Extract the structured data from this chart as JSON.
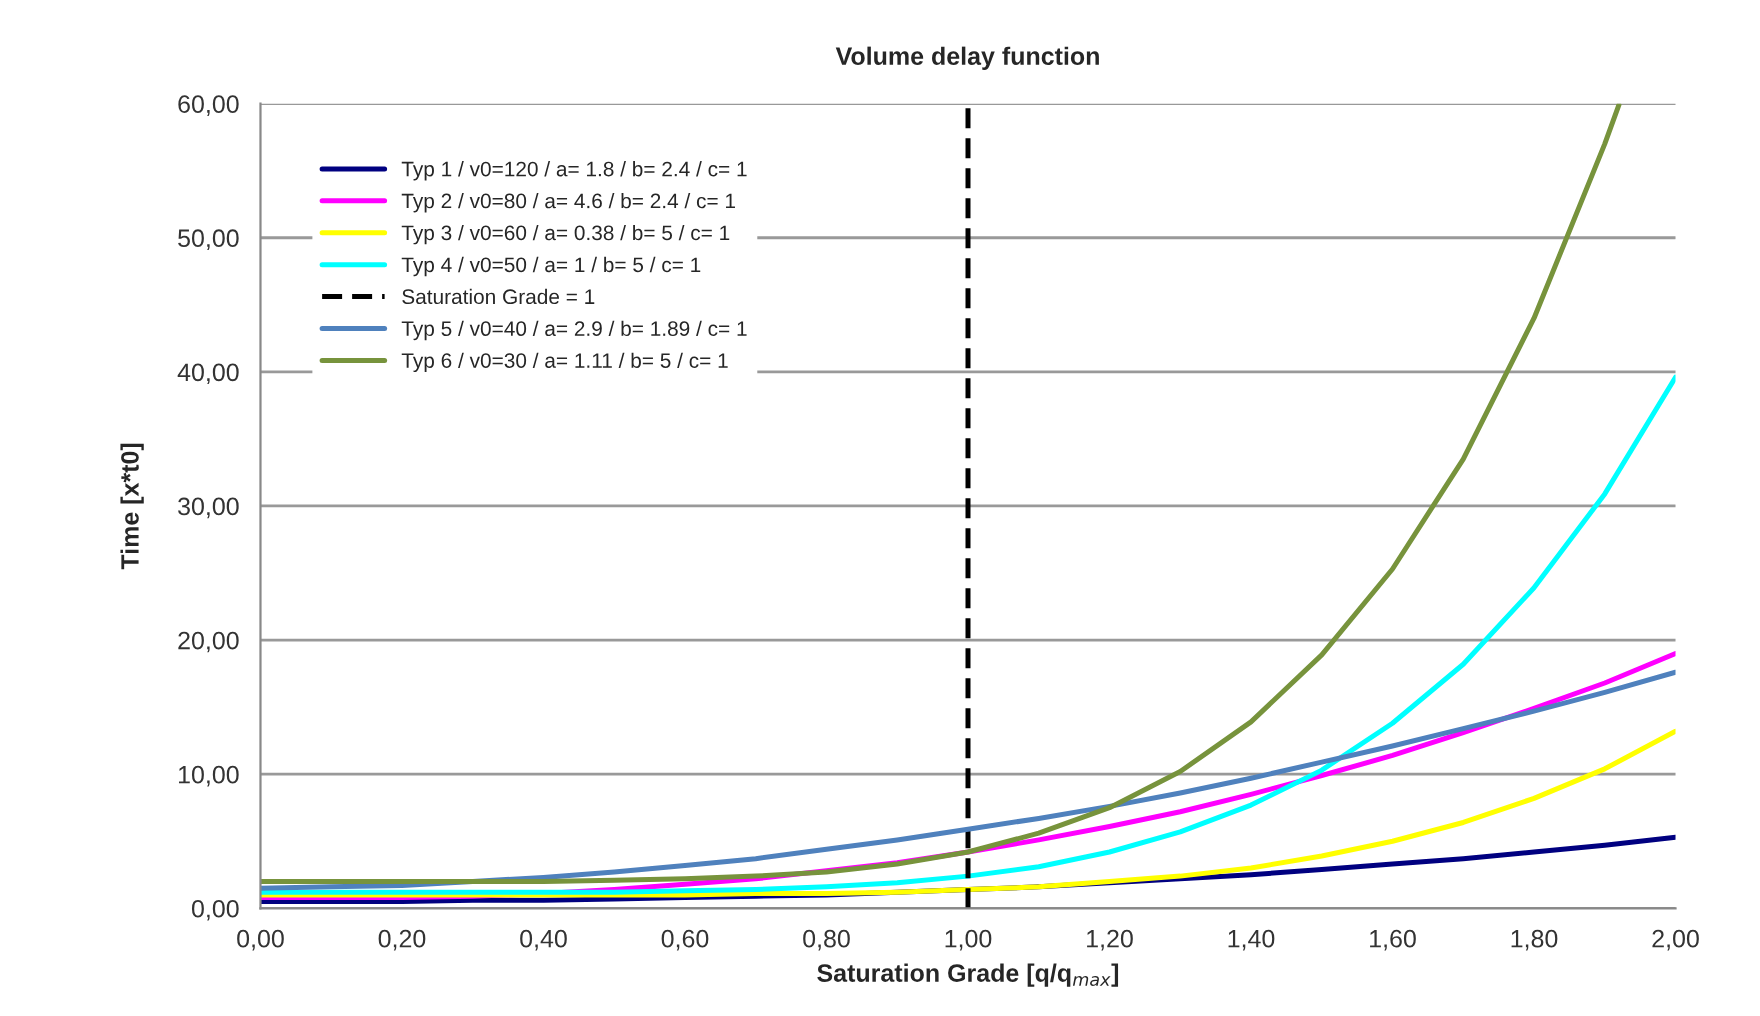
{
  "chart_data": {
    "type": "line",
    "title": "Volume delay function",
    "xlabel": "Saturation Grade [q/q$_{max}$]",
    "ylabel": "Time [x*t0]",
    "x": [
      0,
      0.1,
      0.2,
      0.3,
      0.4,
      0.5,
      0.6,
      0.7,
      0.8,
      0.9,
      1.0,
      1.1,
      1.2,
      1.3,
      1.4,
      1.5,
      1.6,
      1.7,
      1.8,
      1.9,
      2.0
    ],
    "series": [
      {
        "name": "Typ 1 / v0=120 / a= 1.8 / b= 2.4 / c= 1",
        "color": "#000080",
        "values": [
          0.5,
          0.5,
          0.5,
          0.6,
          0.6,
          0.7,
          0.8,
          0.9,
          1.0,
          1.2,
          1.4,
          1.6,
          1.9,
          2.2,
          2.5,
          2.9,
          3.3,
          3.7,
          4.2,
          4.7,
          5.3
        ]
      },
      {
        "name": "Typ 2 / v0=80 / a= 4.6 / b= 2.4 / c= 1",
        "color": "#ff00ff",
        "values": [
          0.8,
          0.8,
          0.8,
          0.9,
          1.1,
          1.4,
          1.8,
          2.2,
          2.8,
          3.4,
          4.2,
          5.1,
          6.1,
          7.2,
          8.5,
          9.9,
          11.4,
          13.1,
          14.9,
          16.8,
          19.0
        ]
      },
      {
        "name": "Typ 3 / v0=60 / a= 0.38 / b= 5 / c= 1",
        "color": "#ffff00",
        "values": [
          1.0,
          1.0,
          1.0,
          1.0,
          1.0,
          1.0,
          1.0,
          1.1,
          1.1,
          1.2,
          1.4,
          1.6,
          2.0,
          2.4,
          3.0,
          3.9,
          5.0,
          6.4,
          8.2,
          10.4,
          13.2
        ]
      },
      {
        "name": "Typ 4 / v0=50 / a= 1 / b= 5 / c= 1",
        "color": "#00ffff",
        "values": [
          1.2,
          1.2,
          1.2,
          1.2,
          1.2,
          1.2,
          1.3,
          1.4,
          1.6,
          1.9,
          2.4,
          3.1,
          4.2,
          5.7,
          7.7,
          10.3,
          13.8,
          18.2,
          23.9,
          30.9,
          39.6
        ]
      },
      {
        "name": "Saturation Grade = 1",
        "color": "#000000",
        "line_style": "dashed",
        "x": [
          1.0,
          1.0
        ],
        "values": [
          0,
          60
        ]
      },
      {
        "name": "Typ 5 / v0=40 / a= 2.9 / b= 1.89 / c= 1",
        "color": "#4f81bd",
        "values": [
          1.5,
          1.6,
          1.7,
          2.0,
          2.3,
          2.7,
          3.2,
          3.7,
          4.4,
          5.1,
          5.9,
          6.7,
          7.6,
          8.6,
          9.7,
          10.9,
          12.1,
          13.4,
          14.7,
          16.1,
          17.6
        ]
      },
      {
        "name": "Typ 6 / v0=30 / a= 1.11 / b= 5 / c= 1",
        "color": "#77933c",
        "x": [
          0,
          0.1,
          0.2,
          0.3,
          0.4,
          0.5,
          0.6,
          0.7,
          0.8,
          0.9,
          1.0,
          1.1,
          1.2,
          1.3,
          1.4,
          1.5,
          1.6,
          1.7,
          1.8,
          1.9,
          1.92
        ],
        "values": [
          2.0,
          2.0,
          2.0,
          2.0,
          2.0,
          2.1,
          2.2,
          2.4,
          2.7,
          3.3,
          4.2,
          5.6,
          7.5,
          10.2,
          13.9,
          18.9,
          25.3,
          33.5,
          44.0,
          57.0,
          59.9
        ]
      }
    ],
    "xlim": [
      0,
      2
    ],
    "ylim": [
      0,
      60
    ],
    "xticks": [
      {
        "value": 0,
        "label": "0,00"
      },
      {
        "value": 0.2,
        "label": "0,20"
      },
      {
        "value": 0.4,
        "label": "0,40"
      },
      {
        "value": 0.6,
        "label": "0,60"
      },
      {
        "value": 0.8,
        "label": "0,80"
      },
      {
        "value": 1.0,
        "label": "1,00"
      },
      {
        "value": 1.2,
        "label": "1,20"
      },
      {
        "value": 1.4,
        "label": "1,40"
      },
      {
        "value": 1.6,
        "label": "1,60"
      },
      {
        "value": 1.8,
        "label": "1,80"
      },
      {
        "value": 2.0,
        "label": "2,00"
      }
    ],
    "yticks": [
      {
        "value": 0,
        "label": "0,00"
      },
      {
        "value": 10,
        "label": "10,00"
      },
      {
        "value": 20,
        "label": "20,00"
      },
      {
        "value": 30,
        "label": "30,00"
      },
      {
        "value": 40,
        "label": "40,00"
      },
      {
        "value": 50,
        "label": "50,00"
      },
      {
        "value": 60,
        "label": "60,00"
      }
    ],
    "grid": "y",
    "legend": "top left",
    "line_style": "solid",
    "marker": "none"
  }
}
